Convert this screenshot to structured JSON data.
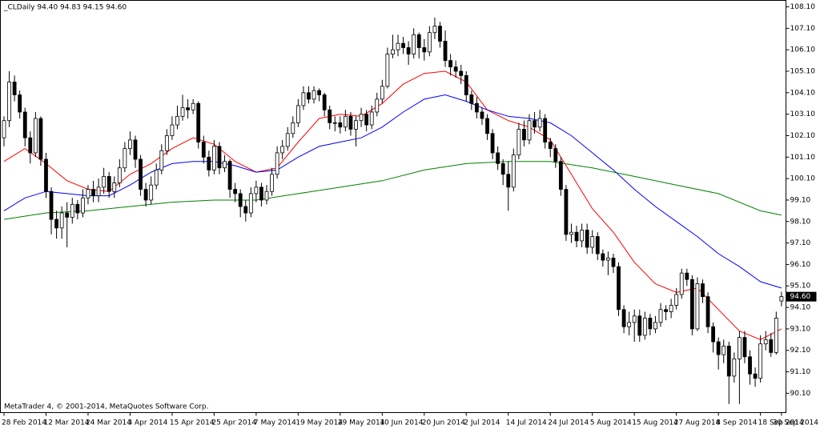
{
  "chart_data": {
    "type": "candlestick",
    "title": "_CLDaily  94.40 94.83 94.15 94.60",
    "footer": "MetaTrader 4, © 2001-2014, MetaQuotes Software Corp.",
    "last_price": {
      "value": 94.6,
      "label": "94.60"
    },
    "categories": [
      "28 Feb 2014",
      null,
      null,
      null,
      null,
      null,
      null,
      null,
      "12 Mar 2014",
      null,
      null,
      null,
      null,
      null,
      null,
      null,
      "24 Mar 2014",
      null,
      null,
      null,
      null,
      null,
      null,
      null,
      "3 Apr 2014",
      null,
      null,
      null,
      null,
      null,
      null,
      null,
      "15 Apr 2014",
      null,
      null,
      null,
      null,
      null,
      null,
      null,
      "25 Apr 2014",
      null,
      null,
      null,
      null,
      null,
      null,
      null,
      "7 May 2014",
      null,
      null,
      null,
      null,
      null,
      null,
      null,
      "19 May 2014",
      null,
      null,
      null,
      null,
      null,
      null,
      null,
      "29 May 2014",
      null,
      null,
      null,
      null,
      null,
      null,
      null,
      "10 Jun 2014",
      null,
      null,
      null,
      null,
      null,
      null,
      null,
      "20 Jun 2014",
      null,
      null,
      null,
      null,
      null,
      null,
      null,
      "2 Jul 2014",
      null,
      null,
      null,
      null,
      null,
      null,
      null,
      "14 Jul 2014",
      null,
      null,
      null,
      null,
      null,
      null,
      null,
      "24 Jul 2014",
      null,
      null,
      null,
      null,
      null,
      null,
      null,
      "5 Aug 2014",
      null,
      null,
      null,
      null,
      null,
      null,
      null,
      "15 Aug 2014",
      null,
      null,
      null,
      null,
      null,
      null,
      null,
      "27 Aug 2014",
      null,
      null,
      null,
      null,
      null,
      null,
      null,
      "8 Sep 2014",
      null,
      null,
      null,
      null,
      null,
      null,
      null,
      "18 Sep 2014",
      null,
      null,
      null,
      "30 Sep 2014"
    ],
    "open": [
      102.0,
      102.8,
      104.6,
      104.0,
      103.2,
      102.0,
      101.3,
      102.9,
      101.0,
      99.5,
      98.2,
      97.8,
      98.5,
      98.3,
      98.9,
      98.5,
      99.2,
      99.6,
      99.3,
      99.7,
      100.2,
      99.5,
      99.9,
      100.6,
      101.5,
      101.9,
      101.0,
      99.6,
      99.1,
      99.8,
      100.5,
      101.4,
      102.1,
      102.6,
      103.0,
      103.4,
      103.3,
      103.6,
      101.8,
      101.1,
      100.5,
      101.6,
      100.6,
      100.9,
      99.6,
      99.4,
      98.8,
      98.5,
      99.4,
      99.7,
      99.1,
      99.5,
      100.3,
      101.3,
      101.6,
      102.2,
      102.7,
      103.5,
      104.1,
      103.8,
      104.2,
      104.0,
      103.3,
      102.7,
      102.7,
      102.5,
      103.0,
      102.4,
      102.8,
      103.1,
      102.6,
      103.2,
      103.8,
      104.4,
      105.9,
      106.1,
      106.4,
      106.2,
      105.9,
      106.8,
      106.2,
      106.0,
      106.9,
      107.2,
      106.5,
      105.6,
      105.3,
      105.1,
      104.9,
      104.0,
      103.6,
      103.2,
      102.9,
      102.2,
      101.3,
      100.8,
      100.3,
      99.7,
      101.2,
      102.4,
      101.9,
      102.8,
      102.5,
      102.9,
      101.8,
      101.5,
      100.9,
      99.6,
      97.5,
      97.6,
      97.2,
      97.7,
      96.9,
      97.4,
      96.6,
      96.3,
      96.4,
      96.0,
      94.0,
      93.2,
      93.4,
      93.7,
      92.8,
      93.6,
      93.1,
      93.4,
      94.0,
      93.9,
      94.2,
      94.7,
      95.7,
      95.4,
      93.1,
      95.2,
      94.6,
      93.2,
      92.5,
      91.9,
      92.3,
      90.9,
      91.7,
      92.7,
      91.8,
      91.0,
      90.8,
      92.4,
      92.6,
      92.0,
      94.4
    ],
    "high": [
      103.0,
      105.1,
      104.9,
      104.2,
      103.4,
      102.3,
      103.2,
      103.0,
      101.3,
      99.7,
      98.6,
      98.8,
      99.0,
      99.2,
      99.1,
      99.6,
      99.8,
      100.0,
      100.1,
      100.6,
      100.4,
      100.2,
      101.0,
      101.8,
      102.3,
      102.1,
      101.2,
      99.9,
      100.2,
      100.8,
      101.7,
      102.4,
      103.0,
      103.5,
      104.0,
      103.8,
      103.8,
      103.7,
      102.1,
      101.4,
      101.9,
      101.8,
      101.2,
      101.0,
      99.9,
      99.6,
      99.1,
      99.7,
      100.0,
      99.9,
      99.8,
      100.6,
      101.6,
      101.9,
      102.5,
      103.0,
      103.8,
      104.4,
      104.4,
      104.4,
      104.3,
      104.1,
      103.5,
      103.0,
      103.0,
      103.3,
      103.2,
      103.0,
      103.4,
      103.3,
      103.5,
      104.1,
      104.7,
      106.2,
      106.8,
      106.8,
      106.7,
      106.5,
      107.1,
      106.9,
      106.6,
      107.2,
      107.6,
      107.4,
      107.0,
      105.9,
      105.6,
      105.4,
      105.1,
      104.2,
      103.9,
      103.4,
      103.1,
      102.4,
      101.6,
      101.0,
      100.9,
      101.5,
      102.7,
      102.8,
      103.1,
      103.2,
      103.3,
      103.1,
      102.0,
      101.7,
      101.1,
      99.8,
      98.0,
      97.9,
      98.0,
      98.0,
      97.7,
      97.6,
      96.8,
      96.7,
      96.6,
      96.2,
      94.2,
      93.9,
      94.0,
      94.0,
      93.9,
      93.8,
      93.7,
      94.3,
      94.2,
      94.5,
      95.0,
      95.9,
      95.9,
      95.6,
      95.5,
      95.4,
      94.8,
      93.4,
      92.7,
      92.6,
      92.5,
      92.0,
      93.0,
      93.0,
      92.1,
      91.3,
      92.8,
      93.0,
      92.9,
      93.9,
      94.83
    ],
    "low": [
      101.6,
      102.5,
      103.7,
      102.9,
      101.6,
      100.8,
      101.1,
      100.7,
      99.2,
      97.5,
      97.3,
      97.3,
      96.9,
      98.0,
      98.2,
      98.3,
      98.9,
      99.0,
      99.0,
      99.4,
      99.2,
      99.2,
      99.7,
      100.4,
      101.2,
      100.6,
      99.3,
      98.8,
      98.9,
      99.6,
      100.3,
      101.2,
      101.9,
      102.4,
      102.8,
      102.9,
      103.1,
      101.5,
      100.8,
      100.2,
      100.3,
      100.3,
      100.4,
      99.2,
      99.0,
      98.3,
      98.1,
      98.3,
      99.0,
      98.8,
      98.9,
      99.3,
      100.1,
      101.0,
      101.4,
      102.0,
      102.5,
      103.3,
      103.6,
      103.6,
      103.7,
      103.0,
      102.4,
      102.3,
      102.2,
      102.3,
      102.1,
      101.6,
      102.5,
      102.3,
      102.4,
      103.0,
      103.6,
      104.3,
      105.7,
      105.8,
      105.9,
      105.4,
      105.7,
      105.7,
      105.6,
      105.8,
      106.6,
      106.2,
      105.3,
      104.9,
      104.8,
      104.5,
      103.7,
      103.3,
      102.9,
      102.6,
      101.9,
      101.0,
      100.5,
      99.8,
      98.6,
      99.5,
      101.0,
      101.6,
      101.7,
      102.2,
      102.3,
      101.5,
      101.1,
      100.6,
      99.3,
      97.2,
      97.1,
      96.9,
      96.9,
      96.6,
      96.6,
      96.3,
      96.0,
      95.6,
      95.7,
      93.7,
      92.9,
      92.8,
      92.5,
      92.5,
      92.6,
      92.8,
      92.9,
      93.2,
      93.5,
      93.6,
      94.0,
      94.5,
      95.1,
      92.8,
      93.0,
      94.3,
      92.9,
      92.0,
      91.2,
      91.5,
      89.6,
      90.6,
      89.6,
      91.5,
      90.5,
      90.4,
      90.6,
      92.1,
      91.8,
      91.9,
      94.15
    ],
    "close": [
      102.8,
      104.6,
      104.0,
      103.2,
      102.0,
      101.3,
      102.9,
      101.0,
      99.5,
      98.2,
      97.8,
      98.5,
      98.3,
      98.9,
      98.5,
      99.2,
      99.6,
      99.3,
      99.7,
      100.2,
      99.5,
      99.9,
      100.6,
      101.5,
      101.9,
      101.0,
      99.6,
      99.1,
      99.8,
      100.5,
      101.4,
      102.1,
      102.6,
      103.0,
      103.4,
      103.3,
      103.6,
      101.8,
      101.1,
      100.5,
      101.6,
      100.6,
      100.9,
      99.6,
      99.4,
      98.8,
      98.5,
      99.4,
      99.7,
      99.1,
      99.5,
      100.3,
      101.3,
      101.6,
      102.2,
      102.7,
      103.5,
      104.1,
      103.8,
      104.2,
      104.0,
      103.3,
      102.7,
      102.7,
      102.5,
      103.0,
      102.4,
      102.8,
      103.1,
      102.6,
      103.2,
      103.8,
      104.4,
      105.9,
      106.1,
      106.4,
      106.2,
      105.9,
      106.8,
      106.2,
      106.0,
      106.9,
      107.2,
      106.5,
      105.6,
      105.3,
      105.1,
      104.9,
      104.0,
      103.6,
      103.2,
      102.9,
      102.2,
      101.3,
      100.8,
      100.3,
      99.7,
      101.2,
      102.4,
      101.9,
      102.8,
      102.5,
      102.9,
      101.8,
      101.5,
      100.9,
      99.6,
      97.5,
      97.6,
      97.2,
      97.7,
      96.9,
      97.4,
      96.6,
      96.3,
      96.4,
      96.0,
      94.0,
      93.2,
      93.4,
      93.7,
      92.8,
      93.6,
      93.1,
      93.4,
      94.0,
      93.9,
      94.2,
      94.7,
      95.7,
      95.4,
      93.1,
      95.2,
      94.6,
      93.2,
      92.5,
      91.9,
      92.3,
      90.9,
      91.7,
      92.7,
      91.8,
      91.0,
      90.8,
      92.4,
      92.6,
      92.0,
      93.6,
      94.6
    ],
    "series": [
      {
        "color": "#ff0000",
        "x": [
          0,
          4,
          8,
          12,
          16,
          20,
          24,
          28,
          32,
          36,
          40,
          44,
          48,
          52,
          56,
          60,
          64,
          68,
          72,
          76,
          80,
          84,
          88,
          92,
          96,
          100,
          104,
          108,
          112,
          116,
          120,
          124,
          128,
          132,
          136,
          140,
          144,
          148
        ],
        "values": [
          100.9,
          101.5,
          100.8,
          100.0,
          99.6,
          99.5,
          100.3,
          100.8,
          101.5,
          102.0,
          101.7,
          100.9,
          100.4,
          100.6,
          101.8,
          102.9,
          103.1,
          103.0,
          103.6,
          104.5,
          105.0,
          105.1,
          104.6,
          103.3,
          102.8,
          102.5,
          101.9,
          100.3,
          98.7,
          97.6,
          96.2,
          95.2,
          94.8,
          95.0,
          94.0,
          93.0,
          92.6,
          93.1
        ]
      },
      {
        "color": "#0000ff",
        "x": [
          0,
          4,
          8,
          12,
          16,
          20,
          24,
          28,
          32,
          36,
          40,
          44,
          48,
          52,
          56,
          60,
          64,
          68,
          72,
          76,
          80,
          84,
          88,
          92,
          96,
          100,
          104,
          108,
          112,
          116,
          120,
          124,
          128,
          132,
          136,
          140,
          144,
          148
        ],
        "values": [
          98.6,
          99.2,
          99.5,
          99.4,
          99.3,
          99.3,
          99.8,
          100.4,
          100.8,
          100.9,
          100.9,
          100.7,
          100.4,
          100.5,
          101.1,
          101.6,
          101.8,
          102.0,
          102.5,
          103.2,
          103.8,
          104.0,
          103.7,
          103.3,
          103.0,
          102.9,
          102.7,
          102.1,
          101.3,
          100.5,
          99.6,
          98.8,
          98.1,
          97.4,
          96.6,
          96.0,
          95.3,
          95.0
        ]
      },
      {
        "color": "#008000",
        "x": [
          0,
          8,
          16,
          24,
          32,
          40,
          48,
          56,
          64,
          72,
          80,
          88,
          96,
          104,
          112,
          120,
          128,
          136,
          144,
          148
        ],
        "values": [
          98.2,
          98.5,
          98.6,
          98.8,
          99.0,
          99.1,
          99.1,
          99.4,
          99.7,
          100.0,
          100.5,
          100.8,
          100.9,
          100.9,
          100.6,
          100.2,
          99.8,
          99.4,
          98.6,
          98.4
        ]
      }
    ],
    "ylim": [
      89.2,
      108.4
    ],
    "yticks": [
      {
        "value": 90.1,
        "label": "90.10"
      },
      {
        "value": 91.1,
        "label": "91.10"
      },
      {
        "value": 92.1,
        "label": "92.10"
      },
      {
        "value": 93.1,
        "label": "93.10"
      },
      {
        "value": 94.1,
        "label": "94.10"
      },
      {
        "value": 95.1,
        "label": "95.10"
      },
      {
        "value": 96.1,
        "label": "96.10"
      },
      {
        "value": 97.1,
        "label": "97.10"
      },
      {
        "value": 98.1,
        "label": "98.10"
      },
      {
        "value": 99.1,
        "label": "99.10"
      },
      {
        "value": 100.1,
        "label": "100.10"
      },
      {
        "value": 101.1,
        "label": "101.10"
      },
      {
        "value": 102.1,
        "label": "102.10"
      },
      {
        "value": 103.1,
        "label": "103.10"
      },
      {
        "value": 104.1,
        "label": "104.10"
      },
      {
        "value": 105.1,
        "label": "105.10"
      },
      {
        "value": 106.1,
        "label": "106.10"
      },
      {
        "value": 107.1,
        "label": "107.10"
      },
      {
        "value": 108.1,
        "label": "108.10"
      }
    ],
    "grid": false
  }
}
